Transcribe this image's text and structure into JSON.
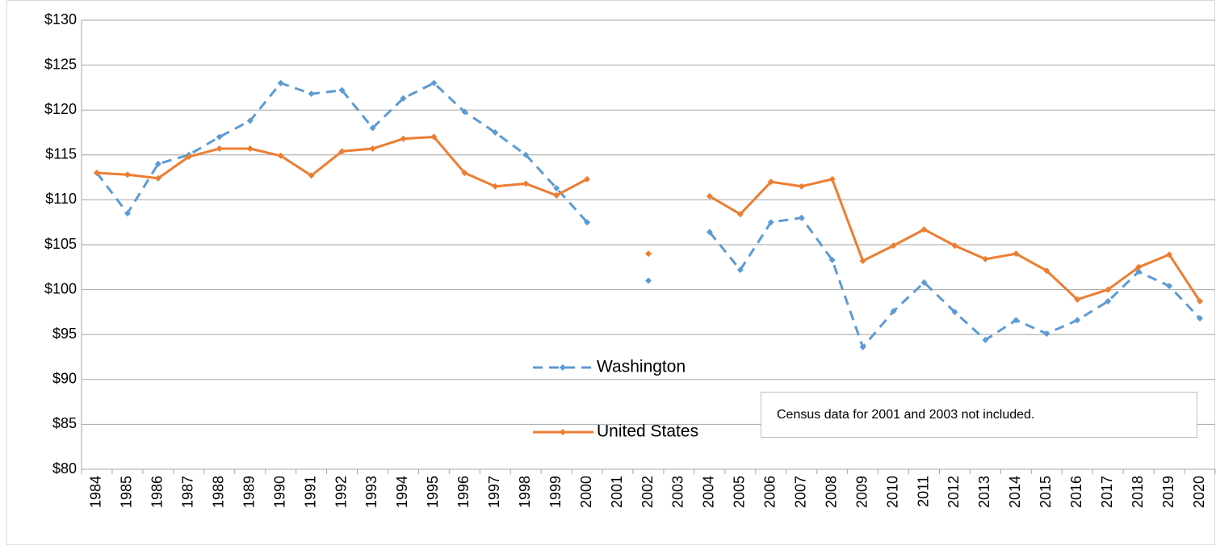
{
  "chart_data": {
    "type": "line",
    "categories": [
      "1984",
      "1985",
      "1986",
      "1987",
      "1988",
      "1989",
      "1990",
      "1991",
      "1992",
      "1993",
      "1994",
      "1995",
      "1996",
      "1997",
      "1998",
      "1999",
      "2000",
      "2001",
      "2002",
      "2003",
      "2004",
      "2005",
      "2006",
      "2007",
      "2008",
      "2009",
      "2010",
      "2011",
      "2012",
      "2013",
      "2014",
      "2015",
      "2016",
      "2017",
      "2018",
      "2019",
      "2020"
    ],
    "series": [
      {
        "name": "Washington",
        "color": "#5b9bd5",
        "linestyle": "dashed",
        "values": [
          113,
          108.5,
          114,
          115,
          117,
          118.8,
          123,
          121.8,
          122.2,
          118,
          121.3,
          123,
          119.8,
          117.5,
          115,
          111.3,
          107.5,
          null,
          101,
          null,
          106.4,
          102.2,
          107.5,
          108,
          103.3,
          93.6,
          97.6,
          100.8,
          97.5,
          94.4,
          96.6,
          95.1,
          96.6,
          98.7,
          102,
          100.4,
          96.8
        ]
      },
      {
        "name": "United States",
        "color": "#ed7d31",
        "linestyle": "solid",
        "values": [
          113,
          112.8,
          112.4,
          114.8,
          115.7,
          115.7,
          114.9,
          112.7,
          115.4,
          115.7,
          116.8,
          117,
          113,
          111.5,
          111.8,
          110.5,
          112.3,
          null,
          104,
          null,
          110.4,
          108.4,
          112,
          111.5,
          112.3,
          103.2,
          104.9,
          106.7,
          104.9,
          103.4,
          104,
          102.1,
          98.9,
          100,
          102.5,
          103.9,
          98.7
        ]
      }
    ],
    "ylim": [
      80,
      130
    ],
    "yticks": [
      {
        "value": 80,
        "label": "$80"
      },
      {
        "value": 85,
        "label": "$85"
      },
      {
        "value": 90,
        "label": "$90"
      },
      {
        "value": 95,
        "label": "$95"
      },
      {
        "value": 100,
        "label": "$100"
      },
      {
        "value": 105,
        "label": "$105"
      },
      {
        "value": 110,
        "label": "$110"
      },
      {
        "value": 115,
        "label": "$115"
      },
      {
        "value": 120,
        "label": "$120"
      },
      {
        "value": 125,
        "label": "$125"
      },
      {
        "value": 130,
        "label": "$130"
      }
    ],
    "grid": true,
    "legend": "center",
    "annotation": "Census data for 2001 and 2003 not included."
  }
}
